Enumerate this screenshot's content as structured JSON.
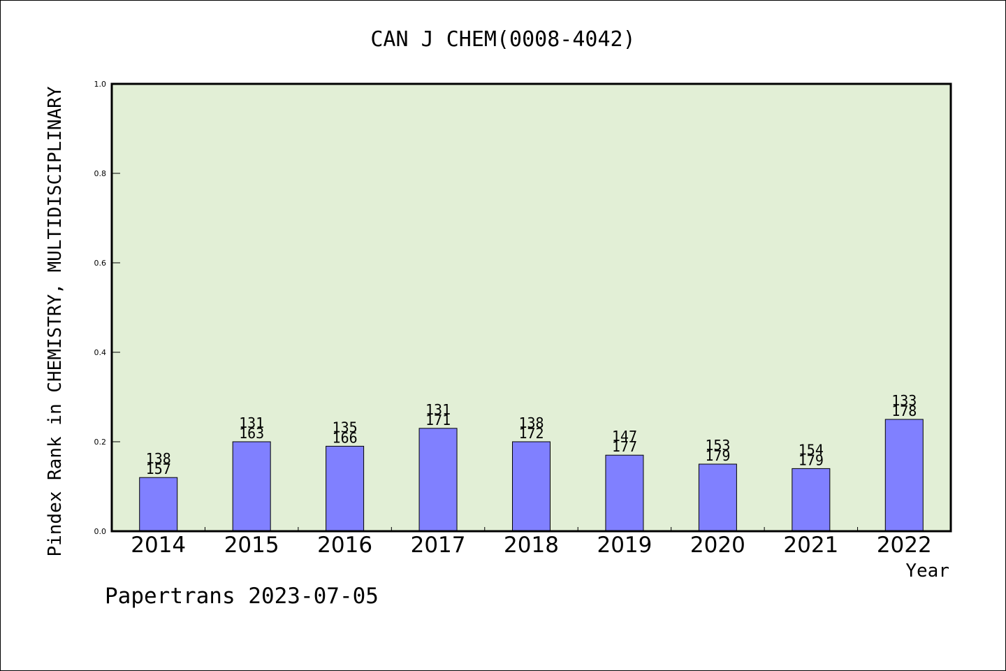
{
  "chart_data": {
    "type": "bar",
    "title": "CAN J CHEM(0008-4042)",
    "ylabel": "Pindex Rank in CHEMISTRY, MULTIDISCIPLINARY",
    "xlabel": "Year",
    "footer": "Papertrans 2023-07-05",
    "categories": [
      "2014",
      "2015",
      "2016",
      "2017",
      "2018",
      "2019",
      "2020",
      "2021",
      "2022"
    ],
    "values": [
      0.12,
      0.2,
      0.19,
      0.23,
      0.2,
      0.17,
      0.15,
      0.14,
      0.25
    ],
    "rank_labels": [
      "138",
      "131",
      "135",
      "131",
      "138",
      "147",
      "153",
      "154",
      "133"
    ],
    "total_labels": [
      "157",
      "163",
      "166",
      "171",
      "172",
      "177",
      "179",
      "179",
      "178"
    ],
    "ylim": [
      0,
      1.0
    ],
    "yticks": [
      0.0,
      0.2,
      0.4,
      0.6,
      0.8,
      1.0
    ],
    "ytick_labels": [
      "0.0",
      "0.2",
      "0.4",
      "0.6",
      "0.8",
      "1.0"
    ],
    "grid": false,
    "colors": {
      "plot_background": "#e2efd6",
      "bar_fill": "#8080ff",
      "bar_stroke": "#000000"
    }
  }
}
